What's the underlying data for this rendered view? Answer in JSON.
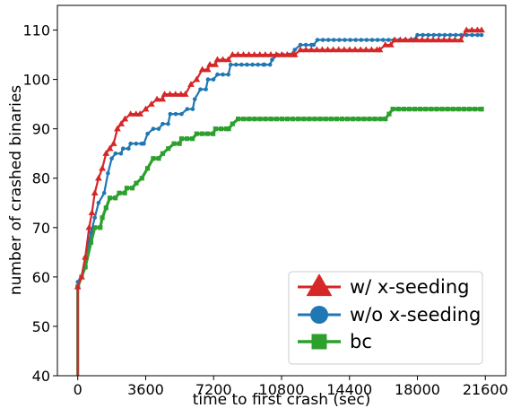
{
  "chart_data": {
    "type": "line",
    "xlabel": "time to first crash (sec)",
    "ylabel": "number of crashed binaries",
    "xlim": [
      -1080,
      22680
    ],
    "ylim": [
      40,
      115
    ],
    "x_ticks": [
      0,
      3600,
      7200,
      10800,
      14400,
      18000,
      21600
    ],
    "y_ticks": [
      40,
      50,
      60,
      70,
      80,
      90,
      100,
      110
    ],
    "grid": false,
    "legend_position": "lower-right",
    "series": [
      {
        "name": "w/ x-seeding",
        "color": "#d62728",
        "marker": "triangle",
        "points": [
          [
            0,
            40
          ],
          [
            0,
            58
          ],
          [
            200,
            60
          ],
          [
            400,
            64
          ],
          [
            600,
            70
          ],
          [
            750,
            73
          ],
          [
            900,
            77
          ],
          [
            1100,
            80
          ],
          [
            1300,
            82
          ],
          [
            1500,
            85
          ],
          [
            1700,
            86
          ],
          [
            1900,
            87
          ],
          [
            2100,
            90
          ],
          [
            2300,
            91
          ],
          [
            2500,
            92
          ],
          [
            2800,
            93
          ],
          [
            3300,
            93
          ],
          [
            3600,
            94
          ],
          [
            3900,
            95
          ],
          [
            4200,
            96
          ],
          [
            4600,
            97
          ],
          [
            5700,
            97
          ],
          [
            6000,
            99
          ],
          [
            6300,
            100
          ],
          [
            6600,
            102
          ],
          [
            7000,
            103
          ],
          [
            7400,
            104
          ],
          [
            8200,
            105
          ],
          [
            11500,
            105
          ],
          [
            11800,
            106
          ],
          [
            16000,
            106
          ],
          [
            16300,
            107
          ],
          [
            16800,
            108
          ],
          [
            20300,
            108
          ],
          [
            20600,
            110
          ],
          [
            21400,
            110
          ]
        ]
      },
      {
        "name": "w/o x-seeding",
        "color": "#1f77b4",
        "marker": "circle",
        "points": [
          [
            0,
            40
          ],
          [
            0,
            59
          ],
          [
            200,
            60
          ],
          [
            400,
            64
          ],
          [
            700,
            69
          ],
          [
            900,
            72
          ],
          [
            1100,
            75
          ],
          [
            1400,
            77
          ],
          [
            1600,
            81
          ],
          [
            1800,
            84
          ],
          [
            2000,
            85
          ],
          [
            2400,
            86
          ],
          [
            2800,
            87
          ],
          [
            3500,
            87
          ],
          [
            3700,
            89
          ],
          [
            4000,
            90
          ],
          [
            4500,
            91
          ],
          [
            4900,
            93
          ],
          [
            5500,
            93
          ],
          [
            5800,
            94
          ],
          [
            6200,
            96
          ],
          [
            6500,
            98
          ],
          [
            6900,
            100
          ],
          [
            7400,
            101
          ],
          [
            8100,
            103
          ],
          [
            9900,
            103
          ],
          [
            10300,
            104
          ],
          [
            10600,
            105
          ],
          [
            11300,
            105
          ],
          [
            11500,
            106
          ],
          [
            11800,
            107
          ],
          [
            12500,
            107
          ],
          [
            12700,
            108
          ],
          [
            17800,
            108
          ],
          [
            18000,
            109
          ],
          [
            21400,
            109
          ]
        ]
      },
      {
        "name": "bc",
        "color": "#2ca02c",
        "marker": "square",
        "points": [
          [
            0,
            40
          ],
          [
            0,
            58
          ],
          [
            200,
            60
          ],
          [
            400,
            62
          ],
          [
            700,
            67
          ],
          [
            900,
            70
          ],
          [
            1300,
            72
          ],
          [
            1500,
            74
          ],
          [
            1700,
            76
          ],
          [
            2200,
            77
          ],
          [
            2600,
            78
          ],
          [
            3100,
            79
          ],
          [
            3400,
            80
          ],
          [
            3700,
            82
          ],
          [
            4000,
            84
          ],
          [
            4500,
            85
          ],
          [
            4800,
            86
          ],
          [
            5100,
            87
          ],
          [
            5500,
            88
          ],
          [
            6300,
            89
          ],
          [
            7300,
            90
          ],
          [
            8000,
            90
          ],
          [
            8200,
            91
          ],
          [
            8500,
            92
          ],
          [
            16300,
            92
          ],
          [
            16500,
            93
          ],
          [
            16700,
            94
          ],
          [
            21400,
            94
          ]
        ]
      }
    ]
  }
}
